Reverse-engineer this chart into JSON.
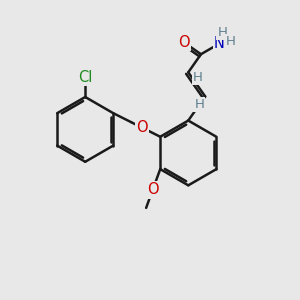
{
  "bg_color": "#e8e8e8",
  "bond_color": "#1a1a1a",
  "bond_width": 1.8,
  "atom_colors": {
    "H": "#5f7f8f",
    "O": "#cc0000",
    "N": "#0000bb",
    "Cl": "#228B22"
  },
  "font_size_atom": 10.5,
  "font_size_H": 9.5,
  "font_size_Cl": 10.5
}
